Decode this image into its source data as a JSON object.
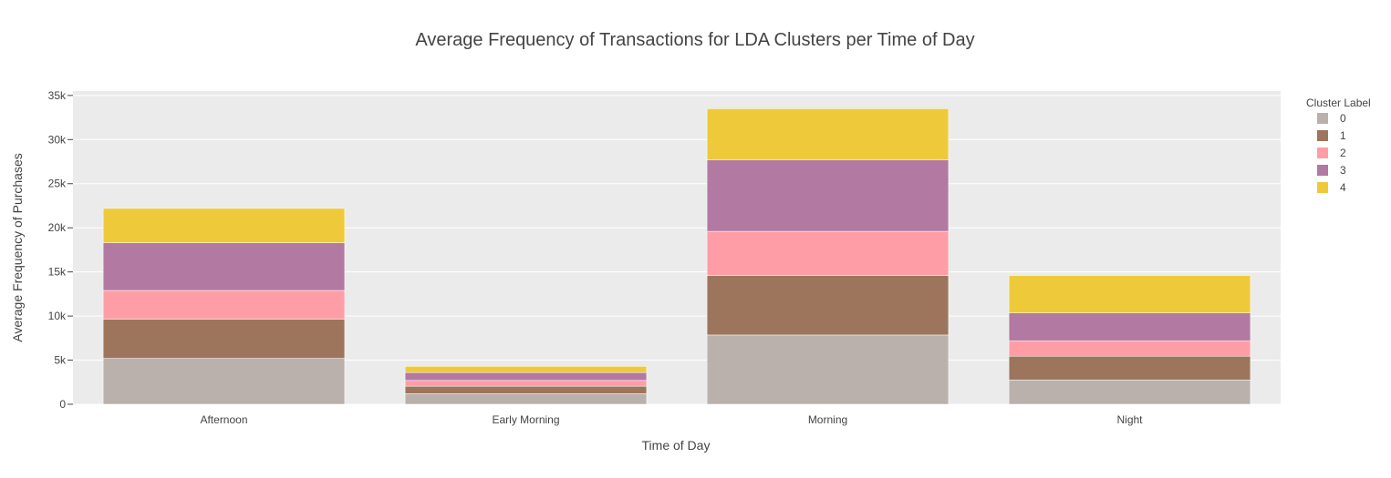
{
  "chart_data": {
    "type": "bar",
    "stacked": true,
    "title": "Average Frequency of Transactions for LDA Clusters per Time of Day",
    "xlabel": "Time of Day",
    "ylabel": "Average Frequency of Purchases",
    "categories": [
      "Afternoon",
      "Early Morning",
      "Morning",
      "Night"
    ],
    "ylim": [
      0,
      35500
    ],
    "yticks": [
      0,
      5000,
      10000,
      15000,
      20000,
      25000,
      30000,
      35000
    ],
    "ytick_labels": [
      "0",
      "5k",
      "10k",
      "15k",
      "20k",
      "25k",
      "30k",
      "35k"
    ],
    "grid": true,
    "legend": {
      "title": "Cluster Label",
      "position": "top-right"
    },
    "series": [
      {
        "name": "0",
        "color": "#bab0ac",
        "values": [
          5200,
          1200,
          7850,
          2750
        ]
      },
      {
        "name": "1",
        "color": "#9d755d",
        "values": [
          4450,
          850,
          6750,
          2700
        ]
      },
      {
        "name": "2",
        "color": "#ff9da6",
        "values": [
          3250,
          650,
          5000,
          1750
        ]
      },
      {
        "name": "3",
        "color": "#b279a2",
        "values": [
          5400,
          900,
          8100,
          3150
        ]
      },
      {
        "name": "4",
        "color": "#eeca3b",
        "values": [
          3900,
          700,
          5800,
          4250
        ]
      }
    ],
    "plot_bg": "#ebebeb",
    "grid_color": "#ffffff"
  }
}
